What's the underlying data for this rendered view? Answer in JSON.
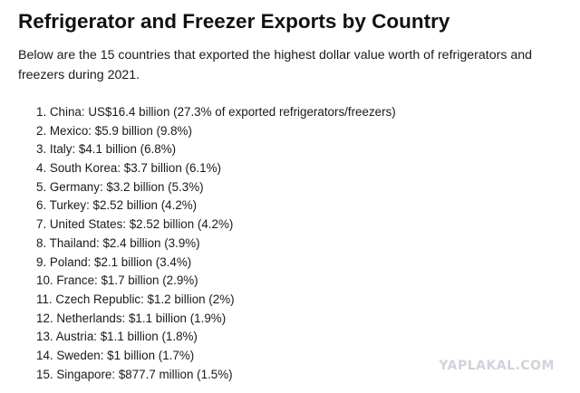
{
  "document": {
    "title": "Refrigerator and Freezer Exports by Country",
    "intro": "Below are the 15 countries that exported the highest dollar value worth of refrigerators and freezers during 2021.",
    "items": [
      "1. China: US$16.4 billion (27.3% of exported refrigerators/freezers)",
      "2. Mexico: $5.9 billion (9.8%)",
      "3. Italy: $4.1 billion (6.8%)",
      "4. South Korea: $3.7 billion (6.1%)",
      "5. Germany: $3.2 billion (5.3%)",
      "6. Turkey: $2.52 billion (4.2%)",
      "7. United States: $2.52 billion (4.2%)",
      "8. Thailand: $2.4 billion (3.9%)",
      "9. Poland: $2.1 billion (3.4%)",
      "10. France: $1.7 billion (2.9%)",
      "11. Czech Republic: $1.2 billion (2%)",
      "12. Netherlands: $1.1 billion (1.9%)",
      "13. Austria: $1.1 billion (1.8%)",
      "14. Sweden: $1 billion (1.7%)",
      "15. Singapore: $877.7 million (1.5%)"
    ]
  },
  "watermark": {
    "text": "YAPLAKAL.COM",
    "color": "#cfd3dc"
  }
}
